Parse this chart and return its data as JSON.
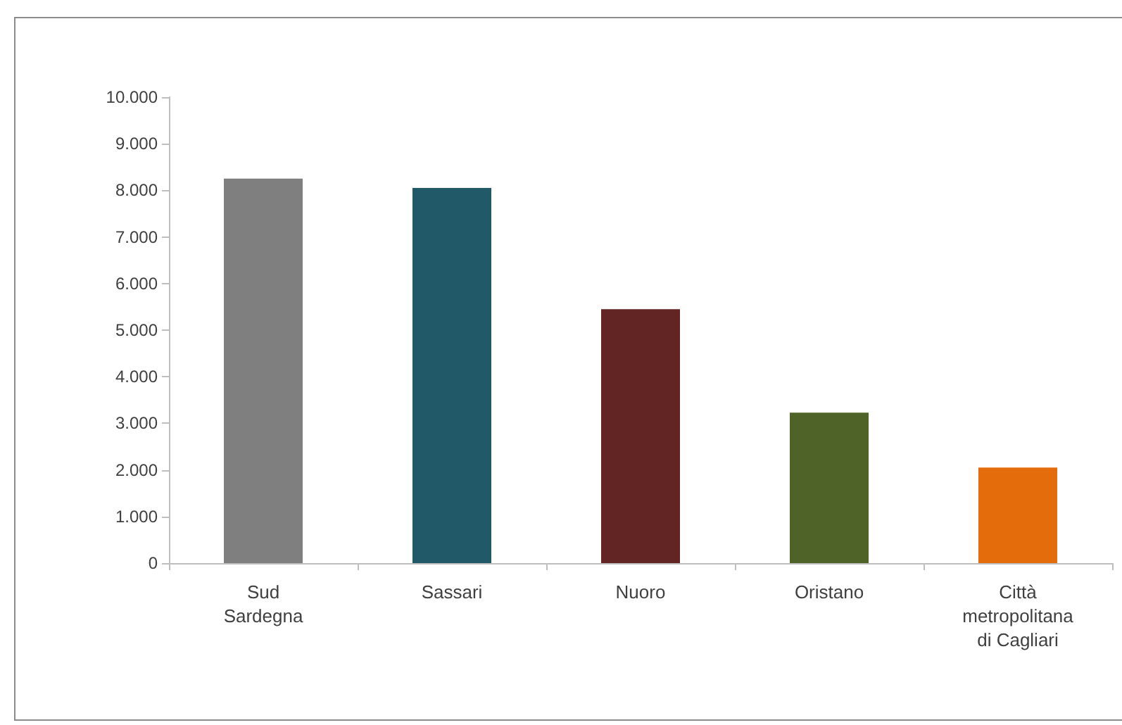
{
  "chart_data": {
    "type": "bar",
    "categories": [
      "Sud Sardegna",
      "Sassari",
      "Nuoro",
      "Oristano",
      "Città metropolitana di Cagliari"
    ],
    "values": [
      8250,
      8050,
      5450,
      3230,
      2050
    ],
    "colors": [
      "#7f7f7f",
      "#215968",
      "#632523",
      "#4f6228",
      "#e46c0a"
    ],
    "ylim": [
      0,
      10000
    ],
    "yticks": [
      0,
      {
        "value": 1000,
        "label": "1.000"
      },
      {
        "value": 2000,
        "label": "2.000"
      },
      {
        "value": 3000,
        "label": "3.000"
      },
      {
        "value": 4000,
        "label": "4.000"
      },
      {
        "value": 5000,
        "label": "5.000"
      },
      {
        "value": 6000,
        "label": "6.000"
      },
      {
        "value": 7000,
        "label": "7.000"
      },
      {
        "value": 8000,
        "label": "8.000"
      },
      {
        "value": 9000,
        "label": "9.000"
      },
      {
        "value": 10000,
        "label": "10.000"
      }
    ],
    "grid": false
  }
}
